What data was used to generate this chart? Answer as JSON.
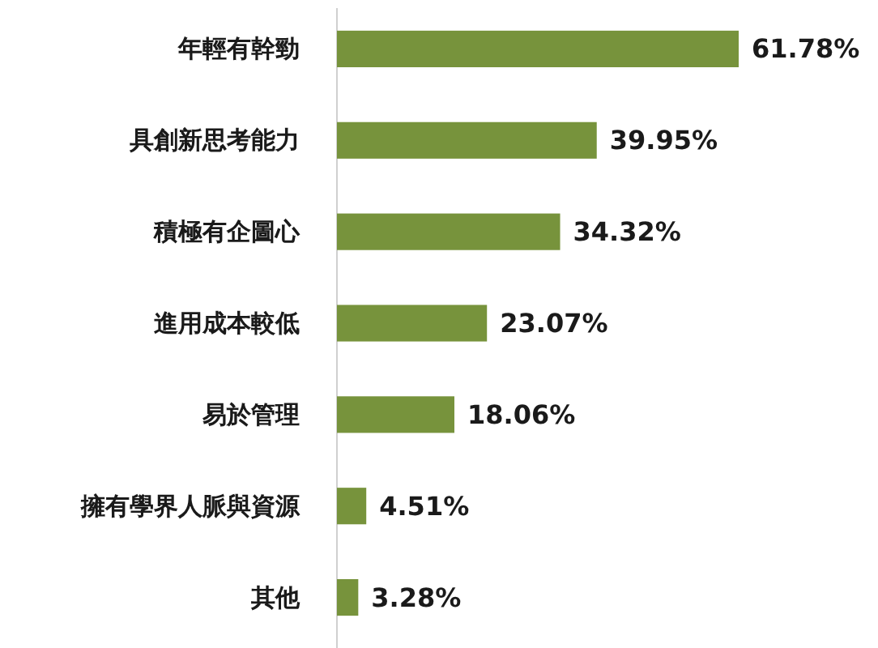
{
  "chart_data": {
    "type": "bar",
    "orientation": "horizontal",
    "categories": [
      "年輕有幹勁",
      "具創新思考能力",
      "積極有企圖心",
      "進用成本較低",
      "易於管理",
      "擁有學界人脈與資源",
      "其他"
    ],
    "values": [
      61.78,
      39.95,
      34.32,
      23.07,
      18.06,
      4.51,
      3.28
    ],
    "value_labels": [
      "61.78%",
      "39.95%",
      "34.32%",
      "23.07%",
      "18.06%",
      "4.51%",
      "3.28%"
    ],
    "color": "#77933c",
    "tick_labels": "y"
  }
}
